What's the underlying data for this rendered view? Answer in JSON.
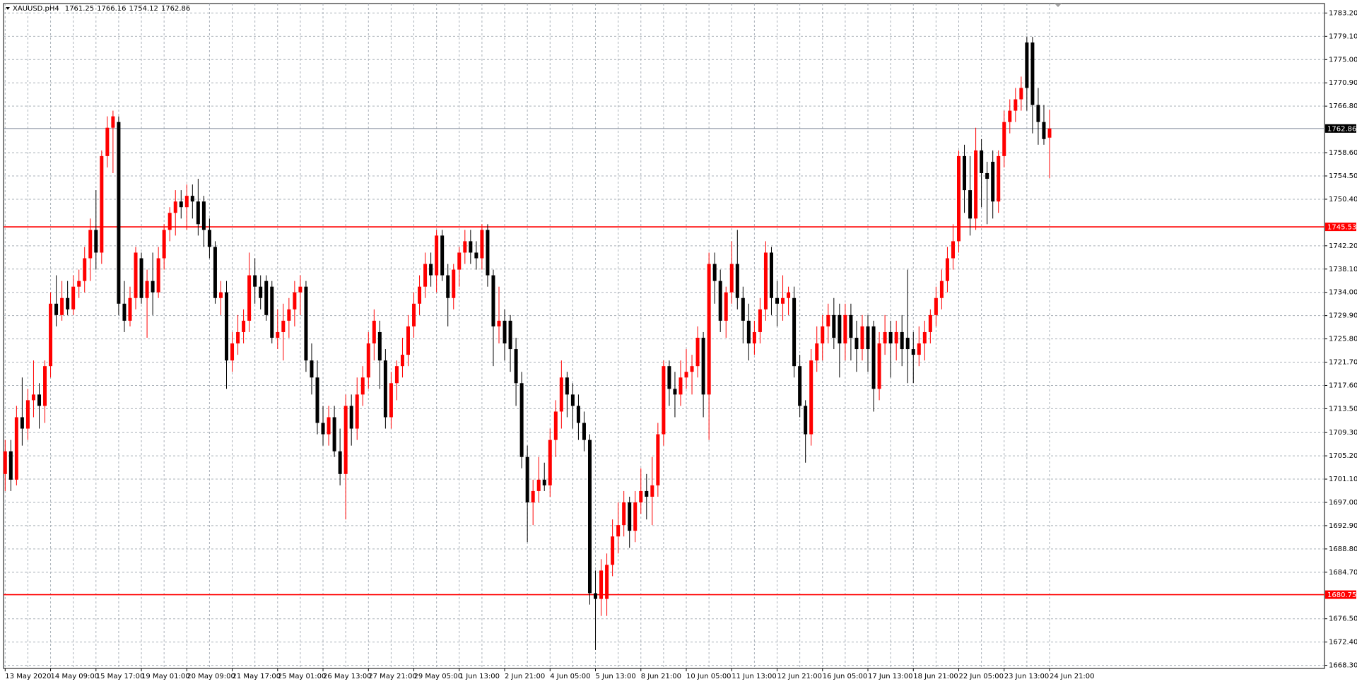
{
  "chart_data": {
    "type": "candlestick",
    "symbol": "XAUUSD.pH4",
    "categories": [
      "13 May 2020",
      null,
      null,
      null,
      null,
      null,
      null,
      null,
      "14 May 09:00",
      null,
      null,
      null,
      null,
      null,
      null,
      null,
      "15 May 17:00",
      null,
      null,
      null,
      null,
      null,
      null,
      null,
      "19 May 01:00",
      null,
      null,
      null,
      null,
      null,
      null,
      null,
      "20 May 09:00",
      null,
      null,
      null,
      null,
      null,
      null,
      null,
      "21 May 17:00",
      null,
      null,
      null,
      null,
      null,
      null,
      null,
      "25 May 01:00",
      null,
      null,
      null,
      null,
      null,
      null,
      null,
      "26 May 13:00",
      null,
      null,
      null,
      null,
      null,
      null,
      null,
      "27 May 21:00",
      null,
      null,
      null,
      null,
      null,
      null,
      null,
      "29 May 05:00",
      null,
      null,
      null,
      null,
      null,
      null,
      null,
      "1 Jun 13:00",
      null,
      null,
      null,
      null,
      null,
      null,
      null,
      "2 Jun 21:00",
      null,
      null,
      null,
      null,
      null,
      null,
      null,
      "4 Jun 05:00",
      null,
      null,
      null,
      null,
      null,
      null,
      null,
      "5 Jun 13:00",
      null,
      null,
      null,
      null,
      null,
      null,
      null,
      "8 Jun 21:00",
      null,
      null,
      null,
      null,
      null,
      null,
      null,
      "10 Jun 05:00",
      null,
      null,
      null,
      null,
      null,
      null,
      null,
      "11 Jun 13:00",
      null,
      null,
      null,
      null,
      null,
      null,
      null,
      "12 Jun 21:00",
      null,
      null,
      null,
      null,
      null,
      null,
      null,
      "16 Jun 05:00",
      null,
      null,
      null,
      null,
      null,
      null,
      null,
      "17 Jun 13:00",
      null,
      null,
      null,
      null,
      null,
      null,
      null,
      "18 Jun 21:00",
      null,
      null,
      null,
      null,
      null,
      null,
      null,
      "22 Jun 05:00",
      null,
      null,
      null,
      null,
      null,
      null,
      null,
      "23 Jun 13:00",
      null,
      null,
      null,
      null,
      null,
      null,
      null,
      "24 Jun 21:00"
    ],
    "ohlc": [
      [
        1702,
        1708,
        1699,
        1706
      ],
      [
        1706,
        1708,
        1699,
        1701
      ],
      [
        1701,
        1714,
        1700,
        1712
      ],
      [
        1712,
        1719,
        1707,
        1710
      ],
      [
        1710,
        1717,
        1708,
        1715
      ],
      [
        1715,
        1722,
        1712,
        1716
      ],
      [
        1716,
        1718,
        1710,
        1714
      ],
      [
        1714,
        1722,
        1711,
        1721
      ],
      [
        1721,
        1734,
        1719,
        1732
      ],
      [
        1732,
        1737,
        1728,
        1730
      ],
      [
        1730,
        1736,
        1729,
        1733
      ],
      [
        1733,
        1736,
        1730,
        1731
      ],
      [
        1731,
        1737,
        1730,
        1735
      ],
      [
        1735,
        1738,
        1733,
        1736
      ],
      [
        1736,
        1742,
        1734,
        1740
      ],
      [
        1740,
        1747,
        1736,
        1745
      ],
      [
        1745,
        1752,
        1738,
        1741
      ],
      [
        1741,
        1759,
        1739,
        1758
      ],
      [
        1758,
        1765,
        1756,
        1763
      ],
      [
        1763,
        1766,
        1755,
        1765
      ],
      [
        1764,
        1765,
        1730,
        1732
      ],
      [
        1732,
        1736,
        1727,
        1729
      ],
      [
        1729,
        1735,
        1728,
        1733
      ],
      [
        1733,
        1742,
        1731,
        1741
      ],
      [
        1740,
        1741,
        1732,
        1733
      ],
      [
        1733,
        1738,
        1726,
        1736
      ],
      [
        1736,
        1741,
        1730,
        1734
      ],
      [
        1734,
        1742,
        1733,
        1740
      ],
      [
        1740,
        1746,
        1738,
        1745
      ],
      [
        1745,
        1749,
        1743,
        1748
      ],
      [
        1748,
        1752,
        1744,
        1750
      ],
      [
        1750,
        1752,
        1747,
        1749
      ],
      [
        1749,
        1753,
        1745,
        1751
      ],
      [
        1751,
        1753,
        1747,
        1750
      ],
      [
        1750,
        1754,
        1744,
        1746
      ],
      [
        1750,
        1751,
        1742,
        1745
      ],
      [
        1745,
        1747,
        1740,
        1742
      ],
      [
        1742,
        1743,
        1732,
        1733
      ],
      [
        1733,
        1736,
        1730,
        1734
      ],
      [
        1734,
        1736,
        1717,
        1722
      ],
      [
        1722,
        1727,
        1720,
        1725
      ],
      [
        1725,
        1730,
        1723,
        1727
      ],
      [
        1727,
        1731,
        1725,
        1729
      ],
      [
        1729,
        1741,
        1727,
        1737
      ],
      [
        1737,
        1740,
        1732,
        1735
      ],
      [
        1735,
        1737,
        1731,
        1733
      ],
      [
        1736,
        1737,
        1729,
        1730
      ],
      [
        1735,
        1736,
        1725,
        1726
      ],
      [
        1726,
        1731,
        1724,
        1727
      ],
      [
        1727,
        1732,
        1722,
        1729
      ],
      [
        1729,
        1733,
        1726,
        1731
      ],
      [
        1731,
        1736,
        1728,
        1734
      ],
      [
        1734,
        1737,
        1730,
        1735
      ],
      [
        1735,
        1736,
        1720,
        1722
      ],
      [
        1722,
        1725,
        1716,
        1719
      ],
      [
        1719,
        1722,
        1709,
        1711
      ],
      [
        1711,
        1714,
        1707,
        1709
      ],
      [
        1709,
        1714,
        1707,
        1712
      ],
      [
        1712,
        1714,
        1705,
        1706
      ],
      [
        1706,
        1710,
        1700,
        1702
      ],
      [
        1702,
        1716,
        1694,
        1714
      ],
      [
        1714,
        1716,
        1707,
        1710
      ],
      [
        1710,
        1719,
        1708,
        1716
      ],
      [
        1716,
        1721,
        1714,
        1719
      ],
      [
        1719,
        1727,
        1717,
        1725
      ],
      [
        1725,
        1731,
        1722,
        1729
      ],
      [
        1727,
        1729,
        1717,
        1722
      ],
      [
        1722,
        1724,
        1710,
        1712
      ],
      [
        1712,
        1720,
        1710,
        1718
      ],
      [
        1718,
        1722,
        1715,
        1721
      ],
      [
        1721,
        1726,
        1719,
        1723
      ],
      [
        1723,
        1730,
        1721,
        1728
      ],
      [
        1728,
        1734,
        1726,
        1732
      ],
      [
        1732,
        1737,
        1730,
        1735
      ],
      [
        1735,
        1741,
        1733,
        1739
      ],
      [
        1739,
        1741,
        1735,
        1737
      ],
      [
        1737,
        1745,
        1734,
        1744
      ],
      [
        1744,
        1745,
        1736,
        1737
      ],
      [
        1737,
        1739,
        1728,
        1733
      ],
      [
        1733,
        1739,
        1731,
        1738
      ],
      [
        1738,
        1742,
        1735,
        1741
      ],
      [
        1741,
        1745,
        1739,
        1743
      ],
      [
        1743,
        1745,
        1739,
        1741
      ],
      [
        1741,
        1743,
        1738,
        1740
      ],
      [
        1740,
        1746,
        1738,
        1745
      ],
      [
        1745,
        1746,
        1735,
        1737
      ],
      [
        1737,
        1738,
        1721,
        1728
      ],
      [
        1728,
        1735,
        1725,
        1729
      ],
      [
        1729,
        1731,
        1722,
        1725
      ],
      [
        1729,
        1730,
        1720,
        1724
      ],
      [
        1724,
        1726,
        1714,
        1718
      ],
      [
        1718,
        1720,
        1703,
        1705
      ],
      [
        1705,
        1707,
        1690,
        1697
      ],
      [
        1697,
        1701,
        1693,
        1699
      ],
      [
        1699,
        1705,
        1697,
        1701
      ],
      [
        1701,
        1704,
        1699,
        1700
      ],
      [
        1700,
        1710,
        1698,
        1708
      ],
      [
        1708,
        1715,
        1705,
        1713
      ],
      [
        1713,
        1722,
        1710,
        1719
      ],
      [
        1719,
        1720,
        1712,
        1716
      ],
      [
        1716,
        1718,
        1710,
        1714
      ],
      [
        1714,
        1716,
        1708,
        1711
      ],
      [
        1711,
        1713,
        1706,
        1708
      ],
      [
        1708,
        1709,
        1679,
        1681
      ],
      [
        1681,
        1685,
        1671,
        1680
      ],
      [
        1680,
        1687,
        1677,
        1685
      ],
      [
        1680,
        1688,
        1677,
        1686
      ],
      [
        1686,
        1694,
        1684,
        1691
      ],
      [
        1691,
        1697,
        1688,
        1693
      ],
      [
        1693,
        1699,
        1691,
        1697
      ],
      [
        1697,
        1698,
        1689,
        1692
      ],
      [
        1692,
        1699,
        1690,
        1697
      ],
      [
        1697,
        1703,
        1695,
        1699
      ],
      [
        1699,
        1702,
        1694,
        1698
      ],
      [
        1698,
        1705,
        1693,
        1700
      ],
      [
        1700,
        1711,
        1698,
        1709
      ],
      [
        1709,
        1722,
        1707,
        1721
      ],
      [
        1721,
        1722,
        1714,
        1717
      ],
      [
        1717,
        1720,
        1712,
        1716
      ],
      [
        1716,
        1722,
        1714,
        1719
      ],
      [
        1719,
        1724,
        1717,
        1720
      ],
      [
        1720,
        1723,
        1716,
        1721
      ],
      [
        1721,
        1728,
        1719,
        1726
      ],
      [
        1726,
        1727,
        1712,
        1716
      ],
      [
        1716,
        1741,
        1708,
        1739
      ],
      [
        1739,
        1741,
        1732,
        1736
      ],
      [
        1736,
        1738,
        1727,
        1729
      ],
      [
        1729,
        1735,
        1726,
        1734
      ],
      [
        1734,
        1743,
        1732,
        1739
      ],
      [
        1739,
        1745,
        1731,
        1733
      ],
      [
        1733,
        1735,
        1725,
        1729
      ],
      [
        1729,
        1732,
        1722,
        1725
      ],
      [
        1725,
        1729,
        1723,
        1727
      ],
      [
        1727,
        1733,
        1725,
        1731
      ],
      [
        1731,
        1743,
        1729,
        1741
      ],
      [
        1741,
        1742,
        1730,
        1733
      ],
      [
        1733,
        1736,
        1728,
        1732
      ],
      [
        1732,
        1737,
        1729,
        1733
      ],
      [
        1733,
        1735,
        1730,
        1734
      ],
      [
        1733,
        1735,
        1719,
        1721
      ],
      [
        1721,
        1723,
        1712,
        1714
      ],
      [
        1714,
        1715,
        1704,
        1709
      ],
      [
        1709,
        1724,
        1707,
        1722
      ],
      [
        1722,
        1728,
        1720,
        1725
      ],
      [
        1725,
        1730,
        1722,
        1728
      ],
      [
        1728,
        1732,
        1725,
        1730
      ],
      [
        1730,
        1733,
        1724,
        1726
      ],
      [
        1730,
        1732,
        1719,
        1725
      ],
      [
        1725,
        1732,
        1722,
        1730
      ],
      [
        1730,
        1732,
        1722,
        1726
      ],
      [
        1726,
        1729,
        1720,
        1724
      ],
      [
        1724,
        1730,
        1722,
        1728
      ],
      [
        1728,
        1730,
        1720,
        1724
      ],
      [
        1728,
        1729,
        1713,
        1717
      ],
      [
        1717,
        1727,
        1715,
        1725
      ],
      [
        1725,
        1730,
        1723,
        1727
      ],
      [
        1727,
        1729,
        1719,
        1725
      ],
      [
        1725,
        1729,
        1722,
        1727
      ],
      [
        1727,
        1730,
        1721,
        1724
      ],
      [
        1726,
        1738,
        1718,
        1724
      ],
      [
        1724,
        1727,
        1718,
        1723
      ],
      [
        1723,
        1728,
        1721,
        1725
      ],
      [
        1725,
        1729,
        1722,
        1727
      ],
      [
        1727,
        1731,
        1725,
        1730
      ],
      [
        1730,
        1735,
        1728,
        1733
      ],
      [
        1733,
        1738,
        1731,
        1736
      ],
      [
        1736,
        1742,
        1734,
        1740
      ],
      [
        1740,
        1746,
        1738,
        1743
      ],
      [
        1743,
        1759,
        1741,
        1758
      ],
      [
        1758,
        1760,
        1748,
        1752
      ],
      [
        1752,
        1758,
        1744,
        1747
      ],
      [
        1747,
        1763,
        1745,
        1759
      ],
      [
        1759,
        1761,
        1749,
        1755
      ],
      [
        1755,
        1757,
        1746,
        1754
      ],
      [
        1757,
        1759,
        1747,
        1750
      ],
      [
        1750,
        1759,
        1748,
        1758
      ],
      [
        1758,
        1766,
        1756,
        1764
      ],
      [
        1764,
        1768,
        1762,
        1766
      ],
      [
        1766,
        1770,
        1764,
        1768
      ],
      [
        1768,
        1772,
        1766,
        1770
      ],
      [
        1778,
        1779,
        1766,
        1770
      ],
      [
        1778,
        1779,
        1762,
        1767
      ],
      [
        1767,
        1770,
        1760,
        1764
      ],
      [
        1764,
        1767,
        1760,
        1761
      ],
      [
        1761.25,
        1766.16,
        1754.12,
        1762.86
      ]
    ],
    "up_color": "#ff0000",
    "down_color": "#000000",
    "ylim": [
      1667.75,
      1784.87
    ],
    "yticks": [
      {
        "value": 1783.2,
        "label": "1783.20"
      },
      {
        "value": 1779.1,
        "label": "1779.10"
      },
      {
        "value": 1775,
        "label": "1775.00"
      },
      {
        "value": 1770.9,
        "label": "1770.90"
      },
      {
        "value": 1766.8,
        "label": "1766.80"
      },
      {
        "value": 1758.6,
        "label": "1758.60"
      },
      {
        "value": 1754.5,
        "label": "1754.50"
      },
      {
        "value": 1750.4,
        "label": "1750.40"
      },
      {
        "value": 1742.2,
        "label": "1742.20"
      },
      {
        "value": 1738.1,
        "label": "1738.10"
      },
      {
        "value": 1734,
        "label": "1734.00"
      },
      {
        "value": 1729.9,
        "label": "1729.90"
      },
      {
        "value": 1725.8,
        "label": "1725.80"
      },
      {
        "value": 1721.7,
        "label": "1721.70"
      },
      {
        "value": 1717.6,
        "label": "1717.60"
      },
      {
        "value": 1713.5,
        "label": "1713.50"
      },
      {
        "value": 1709.3,
        "label": "1709.30"
      },
      {
        "value": 1705.2,
        "label": "1705.20"
      },
      {
        "value": 1701.1,
        "label": "1701.10"
      },
      {
        "value": 1697,
        "label": "1697.00"
      },
      {
        "value": 1692.9,
        "label": "1692.90"
      },
      {
        "value": 1688.8,
        "label": "1688.80"
      },
      {
        "value": 1684.7,
        "label": "1684.70"
      },
      {
        "value": 1676.5,
        "label": "1676.50"
      },
      {
        "value": 1672.4,
        "label": "1672.40"
      },
      {
        "value": 1668.3,
        "label": "1668.30"
      }
    ],
    "grid": true,
    "hlines": [
      {
        "value": 1762.86,
        "color": "#7a8594",
        "label_color": "#000000"
      },
      {
        "value": 1745.53,
        "color": "#ff0000",
        "label_color": "#ff0000"
      },
      {
        "value": 1680.75,
        "color": "#ff0000",
        "label_color": "#ff0000"
      }
    ]
  }
}
